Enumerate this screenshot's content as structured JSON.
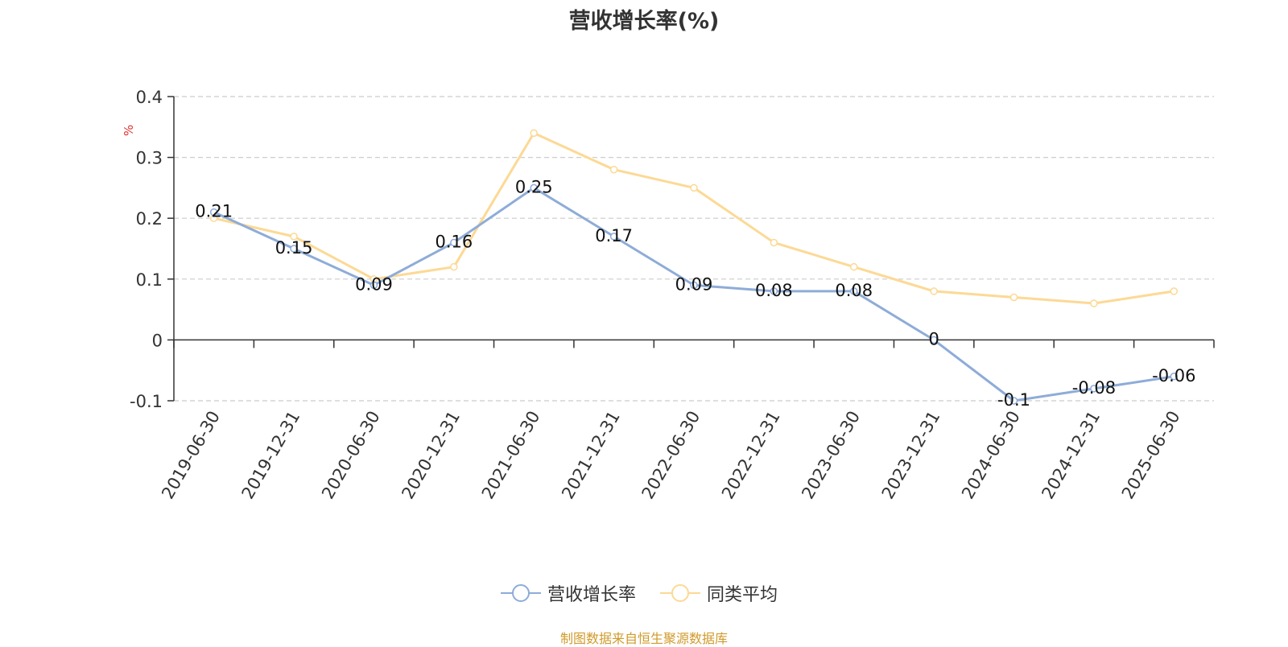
{
  "title": "营收增长率(%)",
  "source": "制图数据来自恒生聚源数据库",
  "colors": {
    "series1": "#8eacd8",
    "series2": "#fcd995",
    "unit": "#e03030",
    "source": "#d19a2a"
  },
  "chart_data": {
    "type": "line",
    "title": "营收增长率(%)",
    "ylabel": "%",
    "xlabel": "",
    "ylim": [
      -0.1,
      0.4
    ],
    "yticks": [
      -0.1,
      0,
      0.1,
      0.2,
      0.3,
      0.4
    ],
    "ytick_labels": [
      "-0.1",
      "0",
      "0.1",
      "0.2",
      "0.3",
      "0.4"
    ],
    "grid": true,
    "legend_position": "bottom-center",
    "categories": [
      "2019-06-30",
      "2019-12-31",
      "2020-06-30",
      "2020-12-31",
      "2021-06-30",
      "2021-12-31",
      "2022-06-30",
      "2022-12-31",
      "2023-06-30",
      "2023-12-31",
      "2024-06-30",
      "2024-12-31",
      "2025-06-30"
    ],
    "series": [
      {
        "name": "营收增长率",
        "values": [
          0.21,
          0.15,
          0.09,
          0.16,
          0.25,
          0.17,
          0.09,
          0.08,
          0.08,
          0,
          -0.1,
          -0.08,
          -0.06
        ],
        "labels": [
          "0.21",
          "0.15",
          "0.09",
          "0.16",
          "0.25",
          "0.17",
          "0.09",
          "0.08",
          "0.08",
          "0",
          "-0.1",
          "-0.08",
          "-0.06"
        ]
      },
      {
        "name": "同类平均",
        "values": [
          0.2,
          0.17,
          0.1,
          0.12,
          0.34,
          0.28,
          0.25,
          0.16,
          0.12,
          0.08,
          0.07,
          0.06,
          0.08
        ]
      }
    ]
  }
}
